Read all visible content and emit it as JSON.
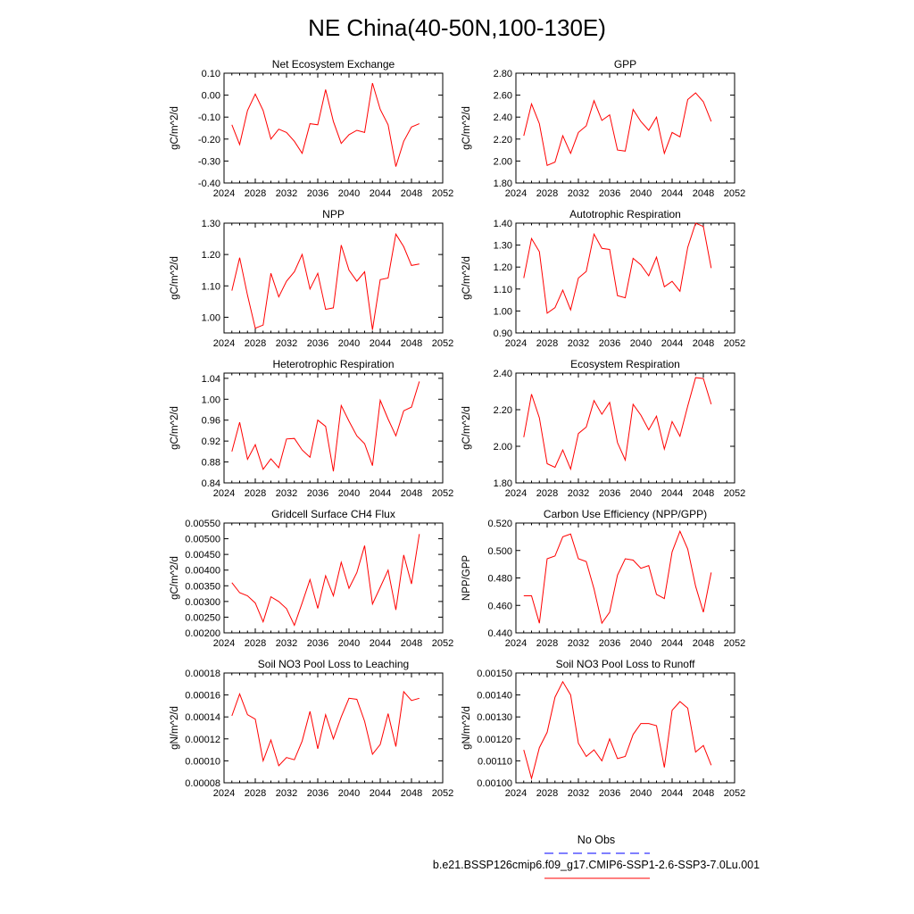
{
  "page_title": "NE China(40-50N,100-130E)",
  "legend": {
    "items": [
      {
        "label": "No Obs",
        "color": "#0000ff",
        "dashed": true
      },
      {
        "label": "b.e21.BSSP126cmip6.f09_g17.CMIP6-SSP1-2.6-SSP3-7.0Lu.001",
        "color": "#ff0000",
        "dashed": false
      }
    ]
  },
  "chart_data": [
    {
      "type": "line",
      "title": "Net Ecosystem Exchange",
      "ylabel": "gC/m^2/d",
      "xlim": [
        2024,
        2052
      ],
      "xticks": [
        2024,
        2028,
        2032,
        2036,
        2040,
        2044,
        2048,
        2052
      ],
      "ylim": [
        -0.4,
        0.1
      ],
      "yticks": [
        "-0.40",
        "-0.30",
        "-0.20",
        "-0.10",
        "0.00",
        "0.10"
      ],
      "color": "#ff0000",
      "x": [
        2025,
        2026,
        2027,
        2028,
        2029,
        2030,
        2031,
        2032,
        2033,
        2034,
        2035,
        2036,
        2037,
        2038,
        2039,
        2040,
        2041,
        2042,
        2043,
        2044,
        2045,
        2046,
        2047,
        2048,
        2049
      ],
      "values": [
        -0.135,
        -0.225,
        -0.07,
        0.005,
        -0.07,
        -0.2,
        -0.155,
        -0.17,
        -0.21,
        -0.265,
        -0.13,
        -0.135,
        0.025,
        -0.12,
        -0.22,
        -0.18,
        -0.16,
        -0.17,
        0.055,
        -0.065,
        -0.135,
        -0.325,
        -0.21,
        -0.145,
        -0.13
      ]
    },
    {
      "type": "line",
      "title": "GPP",
      "ylabel": "gC/m^2/d",
      "xlim": [
        2024,
        2052
      ],
      "xticks": [
        2024,
        2028,
        2032,
        2036,
        2040,
        2044,
        2048,
        2052
      ],
      "ylim": [
        1.8,
        2.8
      ],
      "yticks": [
        "1.80",
        "2.00",
        "2.20",
        "2.40",
        "2.60",
        "2.80"
      ],
      "color": "#ff0000",
      "x": [
        2025,
        2026,
        2027,
        2028,
        2029,
        2030,
        2031,
        2032,
        2033,
        2034,
        2035,
        2036,
        2037,
        2038,
        2039,
        2040,
        2041,
        2042,
        2043,
        2044,
        2045,
        2046,
        2047,
        2048,
        2049
      ],
      "values": [
        2.23,
        2.52,
        2.34,
        1.96,
        1.99,
        2.23,
        2.07,
        2.26,
        2.32,
        2.55,
        2.37,
        2.42,
        2.1,
        2.09,
        2.47,
        2.36,
        2.28,
        2.4,
        2.07,
        2.26,
        2.22,
        2.56,
        2.62,
        2.54,
        2.36
      ]
    },
    {
      "type": "line",
      "title": "NPP",
      "ylabel": "gC/m^2/d",
      "xlim": [
        2024,
        2052
      ],
      "xticks": [
        2024,
        2028,
        2032,
        2036,
        2040,
        2044,
        2048,
        2052
      ],
      "ylim": [
        0.95,
        1.3
      ],
      "yticks": [
        "1.00",
        "1.10",
        "1.20",
        "1.30"
      ],
      "color": "#ff0000",
      "x": [
        2025,
        2026,
        2027,
        2028,
        2029,
        2030,
        2031,
        2032,
        2033,
        2034,
        2035,
        2036,
        2037,
        2038,
        2039,
        2040,
        2041,
        2042,
        2043,
        2044,
        2045,
        2046,
        2047,
        2048,
        2049
      ],
      "values": [
        1.085,
        1.19,
        1.07,
        0.965,
        0.975,
        1.14,
        1.065,
        1.115,
        1.145,
        1.2,
        1.09,
        1.14,
        1.025,
        1.03,
        1.23,
        1.15,
        1.115,
        1.145,
        0.96,
        1.12,
        1.125,
        1.265,
        1.225,
        1.165,
        1.17
      ]
    },
    {
      "type": "line",
      "title": "Autotrophic Respiration",
      "ylabel": "gC/m^2/d",
      "xlim": [
        2024,
        2052
      ],
      "xticks": [
        2024,
        2028,
        2032,
        2036,
        2040,
        2044,
        2048,
        2052
      ],
      "ylim": [
        0.9,
        1.4
      ],
      "yticks": [
        "0.90",
        "1.00",
        "1.10",
        "1.20",
        "1.30",
        "1.40"
      ],
      "color": "#ff0000",
      "x": [
        2025,
        2026,
        2027,
        2028,
        2029,
        2030,
        2031,
        2032,
        2033,
        2034,
        2035,
        2036,
        2037,
        2038,
        2039,
        2040,
        2041,
        2042,
        2043,
        2044,
        2045,
        2046,
        2047,
        2048,
        2049
      ],
      "values": [
        1.15,
        1.33,
        1.27,
        0.99,
        1.015,
        1.095,
        1.005,
        1.15,
        1.18,
        1.35,
        1.285,
        1.28,
        1.07,
        1.06,
        1.24,
        1.21,
        1.16,
        1.245,
        1.11,
        1.135,
        1.09,
        1.29,
        1.4,
        1.385,
        1.195
      ]
    },
    {
      "type": "line",
      "title": "Heterotrophic Respiration",
      "ylabel": "gC/m^2/d",
      "xlim": [
        2024,
        2052
      ],
      "xticks": [
        2024,
        2028,
        2032,
        2036,
        2040,
        2044,
        2048,
        2052
      ],
      "ylim": [
        0.84,
        1.05
      ],
      "yticks": [
        "0.84",
        "0.88",
        "0.92",
        "0.96",
        "1.00",
        "1.04"
      ],
      "color": "#ff0000",
      "x": [
        2025,
        2026,
        2027,
        2028,
        2029,
        2030,
        2031,
        2032,
        2033,
        2034,
        2035,
        2036,
        2037,
        2038,
        2039,
        2040,
        2041,
        2042,
        2043,
        2044,
        2045,
        2046,
        2047,
        2048,
        2049
      ],
      "values": [
        0.9,
        0.956,
        0.885,
        0.913,
        0.866,
        0.886,
        0.869,
        0.924,
        0.925,
        0.903,
        0.889,
        0.96,
        0.948,
        0.862,
        0.988,
        0.958,
        0.93,
        0.915,
        0.873,
        0.998,
        0.962,
        0.93,
        0.978,
        0.985,
        1.034
      ]
    },
    {
      "type": "line",
      "title": "Ecosystem Respiration",
      "ylabel": "gC/m^2/d",
      "xlim": [
        2024,
        2052
      ],
      "xticks": [
        2024,
        2028,
        2032,
        2036,
        2040,
        2044,
        2048,
        2052
      ],
      "ylim": [
        1.8,
        2.4
      ],
      "yticks": [
        "1.80",
        "2.00",
        "2.20",
        "2.40"
      ],
      "color": "#ff0000",
      "x": [
        2025,
        2026,
        2027,
        2028,
        2029,
        2030,
        2031,
        2032,
        2033,
        2034,
        2035,
        2036,
        2037,
        2038,
        2039,
        2040,
        2041,
        2042,
        2043,
        2044,
        2045,
        2046,
        2047,
        2048,
        2049
      ],
      "values": [
        2.05,
        2.285,
        2.155,
        1.905,
        1.885,
        1.98,
        1.875,
        2.07,
        2.105,
        2.25,
        2.175,
        2.24,
        2.02,
        1.925,
        2.23,
        2.17,
        2.09,
        2.165,
        1.985,
        2.135,
        2.055,
        2.22,
        2.375,
        2.37,
        2.23
      ]
    },
    {
      "type": "line",
      "title": "Gridcell Surface CH4 Flux",
      "ylabel": "gC/m^2/d",
      "xlim": [
        2024,
        2052
      ],
      "xticks": [
        2024,
        2028,
        2032,
        2036,
        2040,
        2044,
        2048,
        2052
      ],
      "ylim": [
        0.002,
        0.0055
      ],
      "yticks": [
        "0.00200",
        "0.00250",
        "0.00300",
        "0.00350",
        "0.00400",
        "0.00450",
        "0.00500",
        "0.00550"
      ],
      "color": "#ff0000",
      "x": [
        2025,
        2026,
        2027,
        2028,
        2029,
        2030,
        2031,
        2032,
        2033,
        2034,
        2035,
        2036,
        2037,
        2038,
        2039,
        2040,
        2041,
        2042,
        2043,
        2044,
        2045,
        2046,
        2047,
        2048,
        2049
      ],
      "values": [
        0.0036,
        0.00328,
        0.00318,
        0.00295,
        0.00235,
        0.00315,
        0.003,
        0.00277,
        0.00224,
        0.00295,
        0.0037,
        0.00278,
        0.00382,
        0.00318,
        0.00425,
        0.00342,
        0.00392,
        0.00478,
        0.00292,
        0.00345,
        0.004,
        0.00273,
        0.00448,
        0.00356,
        0.00515
      ]
    },
    {
      "type": "line",
      "title": "Carbon Use Efficiency (NPP/GPP)",
      "ylabel": "NPP/GPP",
      "xlim": [
        2024,
        2052
      ],
      "xticks": [
        2024,
        2028,
        2032,
        2036,
        2040,
        2044,
        2048,
        2052
      ],
      "ylim": [
        0.44,
        0.52
      ],
      "yticks": [
        "0.440",
        "0.460",
        "0.480",
        "0.500",
        "0.520"
      ],
      "color": "#ff0000",
      "x": [
        2025,
        2026,
        2027,
        2028,
        2029,
        2030,
        2031,
        2032,
        2033,
        2034,
        2035,
        2036,
        2037,
        2038,
        2039,
        2040,
        2041,
        2042,
        2043,
        2044,
        2045,
        2046,
        2047,
        2048,
        2049
      ],
      "values": [
        0.467,
        0.467,
        0.447,
        0.494,
        0.496,
        0.51,
        0.512,
        0.494,
        0.492,
        0.472,
        0.447,
        0.455,
        0.482,
        0.494,
        0.493,
        0.487,
        0.489,
        0.468,
        0.465,
        0.499,
        0.514,
        0.501,
        0.474,
        0.455,
        0.484
      ]
    },
    {
      "type": "line",
      "title": "Soil NO3 Pool Loss to Leaching",
      "ylabel": "gN/m^2/d",
      "xlim": [
        2024,
        2052
      ],
      "xticks": [
        2024,
        2028,
        2032,
        2036,
        2040,
        2044,
        2048,
        2052
      ],
      "ylim": [
        8e-05,
        0.00018
      ],
      "yticks": [
        "0.00008",
        "0.00010",
        "0.00012",
        "0.00014",
        "0.00016",
        "0.00018"
      ],
      "color": "#ff0000",
      "x": [
        2025,
        2026,
        2027,
        2028,
        2029,
        2030,
        2031,
        2032,
        2033,
        2034,
        2035,
        2036,
        2037,
        2038,
        2039,
        2040,
        2041,
        2042,
        2043,
        2044,
        2045,
        2046,
        2047,
        2048,
        2049
      ],
      "values": [
        0.000141,
        0.000161,
        0.000142,
        0.000138,
        0.0001,
        0.000119,
        9.55e-05,
        0.000103,
        0.000101,
        0.000118,
        0.000145,
        0.000111,
        0.000142,
        0.00012,
        0.00014,
        0.000157,
        0.000156,
        0.000136,
        0.000106,
        0.000115,
        0.000143,
        0.000113,
        0.000163,
        0.000155,
        0.000157
      ]
    },
    {
      "type": "line",
      "title": "Soil NO3 Pool Loss to Runoff",
      "ylabel": "gN/m^2/d",
      "xlim": [
        2024,
        2052
      ],
      "xticks": [
        2024,
        2028,
        2032,
        2036,
        2040,
        2044,
        2048,
        2052
      ],
      "ylim": [
        0.001,
        0.0015
      ],
      "yticks": [
        "0.00100",
        "0.00110",
        "0.00120",
        "0.00130",
        "0.00140",
        "0.00150"
      ],
      "color": "#ff0000",
      "x": [
        2025,
        2026,
        2027,
        2028,
        2029,
        2030,
        2031,
        2032,
        2033,
        2034,
        2035,
        2036,
        2037,
        2038,
        2039,
        2040,
        2041,
        2042,
        2043,
        2044,
        2045,
        2046,
        2047,
        2048,
        2049
      ],
      "values": [
        0.00115,
        0.00102,
        0.00116,
        0.00123,
        0.00139,
        0.00146,
        0.0014,
        0.00118,
        0.00112,
        0.00115,
        0.0011,
        0.0012,
        0.00111,
        0.00112,
        0.00122,
        0.00127,
        0.00127,
        0.00126,
        0.00107,
        0.00133,
        0.00137,
        0.00134,
        0.00114,
        0.00117,
        0.00108
      ]
    }
  ]
}
